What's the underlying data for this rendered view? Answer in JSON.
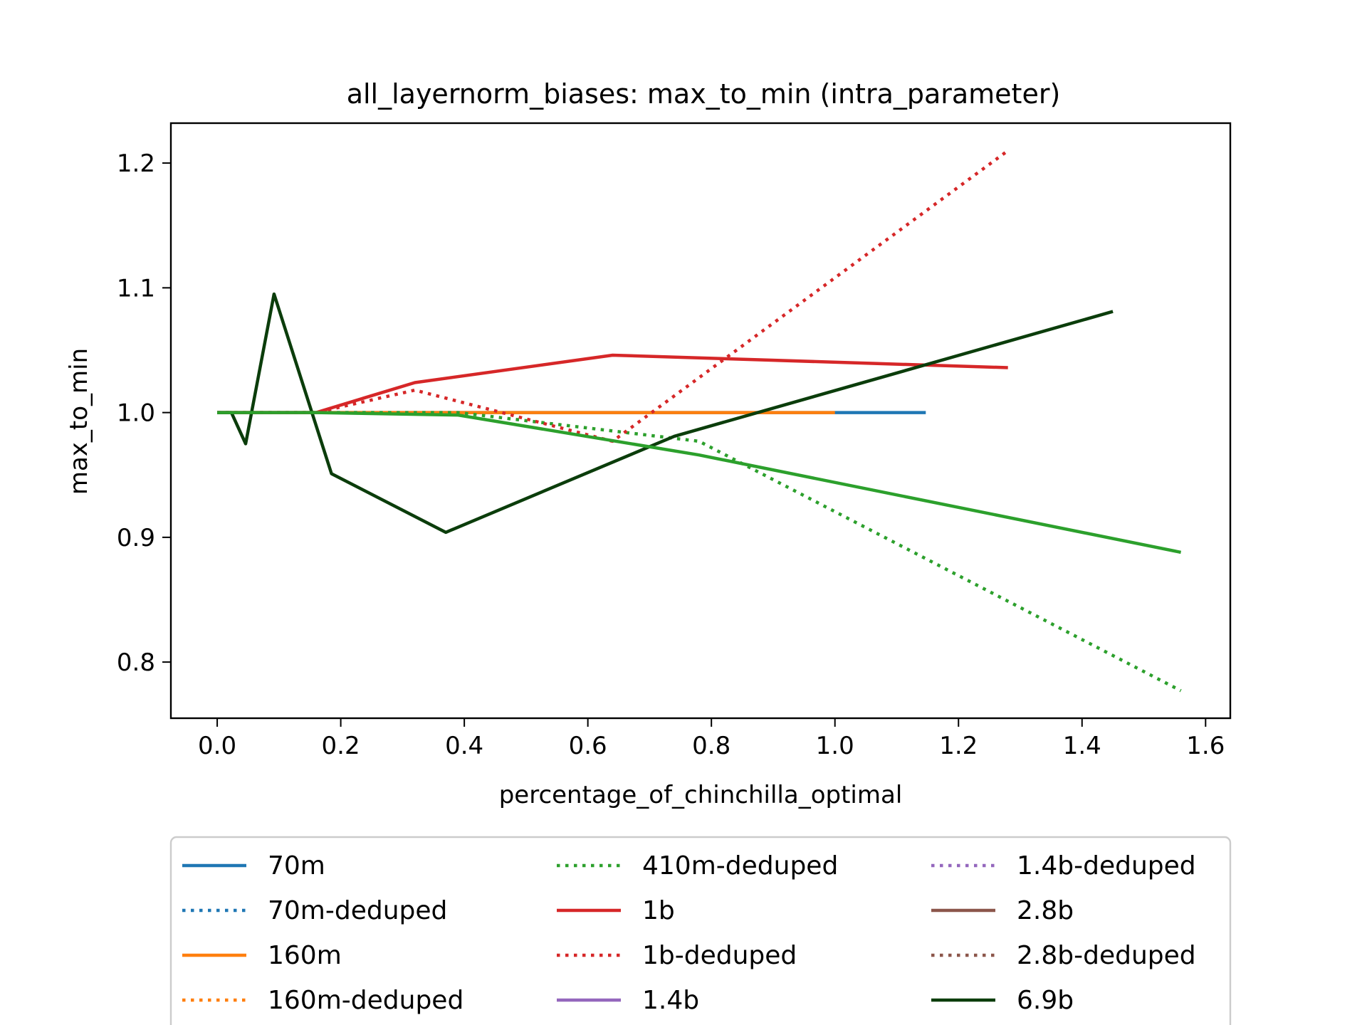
{
  "chart_data": {
    "type": "line",
    "title": "all_layernorm_biases: max_to_min (intra_parameter)",
    "xlabel": "percentage_of_chinchilla_optimal",
    "ylabel": "max_to_min",
    "xlim": [
      -0.075,
      1.64
    ],
    "ylim": [
      0.755,
      1.232
    ],
    "xticks": [
      0.0,
      0.2,
      0.4,
      0.6,
      0.8,
      1.0,
      1.2,
      1.4,
      1.6
    ],
    "xtick_labels": [
      "0.0",
      "0.2",
      "0.4",
      "0.6",
      "0.8",
      "1.0",
      "1.2",
      "1.4",
      "1.6"
    ],
    "yticks": [
      0.8,
      0.9,
      1.0,
      1.1,
      1.2
    ],
    "ytick_labels": [
      "0.8",
      "0.9",
      "1.0",
      "1.1",
      "1.2"
    ],
    "grid": false,
    "legend_placement": "bottom-center (below plot, 3 columns)",
    "series": [
      {
        "name": "70m",
        "color": "#1f77b4",
        "style": "solid",
        "x": [
          0.0,
          0.16,
          0.32,
          0.64,
          1.0,
          1.147
        ],
        "y": [
          1.0,
          1.0,
          1.0,
          1.0,
          1.0,
          1.0
        ]
      },
      {
        "name": "70m-deduped",
        "color": "#1f77b4",
        "style": "dotted",
        "x": [],
        "y": []
      },
      {
        "name": "160m",
        "color": "#ff7f0e",
        "style": "solid",
        "x": [
          0.0,
          0.16,
          0.32,
          0.64,
          1.0
        ],
        "y": [
          1.0,
          1.0,
          1.0,
          1.0,
          1.0
        ]
      },
      {
        "name": "160m-deduped",
        "color": "#ff7f0e",
        "style": "dotted",
        "x": [],
        "y": []
      },
      {
        "name": "410m-deduped",
        "color": "#2ca02c",
        "style": "dotted",
        "x": [
          0.0,
          0.16,
          0.39,
          0.78,
          1.56
        ],
        "y": [
          1.0,
          1.0,
          1.0,
          0.977,
          0.777
        ]
      },
      {
        "name": "1b",
        "color": "#d62728",
        "style": "solid",
        "x": [
          0.0,
          0.16,
          0.32,
          0.64,
          1.28
        ],
        "y": [
          1.0,
          1.0,
          1.024,
          1.046,
          1.036
        ]
      },
      {
        "name": "1b-deduped",
        "color": "#d62728",
        "style": "dotted",
        "x": [
          0.0,
          0.16,
          0.32,
          0.64,
          1.28
        ],
        "y": [
          1.0,
          1.0,
          1.018,
          0.977,
          1.21
        ]
      },
      {
        "name": "1.4b",
        "color": "#9467bd",
        "style": "solid",
        "x": [],
        "y": []
      },
      {
        "name": "1.4b-deduped",
        "color": "#9467bd",
        "style": "dotted",
        "x": [],
        "y": []
      },
      {
        "name": "2.8b",
        "color": "#8c564b",
        "style": "solid",
        "x": [],
        "y": []
      },
      {
        "name": "2.8b-deduped",
        "color": "#8c564b",
        "style": "dotted",
        "x": [],
        "y": []
      },
      {
        "name": "6.9b",
        "color": "#0b3d0b",
        "style": "solid",
        "x": [
          0.0,
          0.023,
          0.046,
          0.092,
          0.185,
          0.37,
          0.74,
          1.45
        ],
        "y": [
          1.0,
          1.0,
          0.975,
          1.095,
          0.951,
          0.904,
          0.981,
          1.081
        ]
      },
      {
        "name": "",
        "color": "#2ca02c",
        "style": "solid",
        "x": [
          0.0,
          0.16,
          0.39,
          0.78,
          1.56
        ],
        "y": [
          1.0,
          1.0,
          0.998,
          0.966,
          0.888
        ]
      }
    ]
  }
}
